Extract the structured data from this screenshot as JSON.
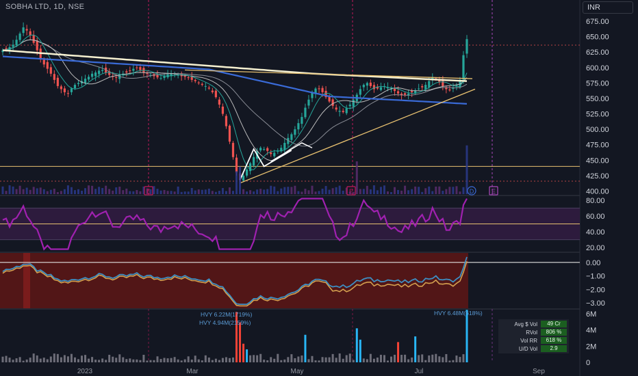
{
  "header": {
    "symbol": "SOBHA LTD",
    "interval": "1D",
    "exchange": "NSE",
    "title": "SOBHA LTD, 1D, NSE"
  },
  "currency_button": "INR",
  "colors": {
    "bg": "#131722",
    "up": "#26a69a",
    "down": "#ef5350",
    "ma200": "#f5f0d0",
    "ma_blue": "#3a6bd8",
    "trend": "#e8c170",
    "rsi": "#a021b0",
    "rsi_band": "#2d1b3d",
    "stoch_bg": "#5a1616",
    "vol_red": "#f44336",
    "vol_blue": "#29b6f6",
    "vol_gray": "#6d6d78"
  },
  "earnings_markers": [
    "E",
    "E",
    "D",
    "E"
  ],
  "chart_data": [
    {
      "type": "candlestick",
      "panel": "price",
      "yaxis_ticks": [
        "675.00",
        "650.00",
        "625.00",
        "600.00",
        "575.00",
        "550.00",
        "525.00",
        "500.00",
        "475.00",
        "450.00",
        "425.00",
        "400.00"
      ],
      "ylim": [
        395,
        685
      ],
      "x_tick_labels": [
        "2023",
        "Mar",
        "May",
        "Jul",
        "Sep"
      ],
      "horizontal_level": 440,
      "closes": [
        628,
        630,
        633,
        637,
        645,
        655,
        665,
        660,
        652,
        640,
        628,
        615,
        605,
        598,
        590,
        580,
        570,
        565,
        560,
        558,
        566,
        572,
        575,
        578,
        582,
        585,
        590,
        592,
        595,
        596,
        592,
        588,
        585,
        584,
        588,
        590,
        592,
        595,
        598,
        600,
        596,
        592,
        590,
        588,
        586,
        584,
        583,
        587,
        589,
        591,
        590,
        588,
        586,
        585,
        583,
        580,
        578,
        575,
        572,
        570,
        566,
        560,
        552,
        540,
        525,
        505,
        480,
        455,
        430,
        418,
        425,
        435,
        445,
        455,
        465,
        470,
        468,
        465,
        460,
        462,
        465,
        470,
        478,
        486,
        492,
        500,
        510,
        520,
        535,
        548,
        560,
        566,
        565,
        560,
        552,
        545,
        538,
        532,
        530,
        528,
        534,
        540,
        548,
        556,
        565,
        572,
        575,
        570,
        565,
        566,
        568,
        570,
        568,
        566,
        562,
        558,
        555,
        556,
        558,
        560,
        563,
        566,
        568,
        572,
        578,
        584,
        582,
        576,
        570,
        565,
        563,
        568,
        572,
        580,
        620,
        646
      ]
    },
    {
      "type": "line",
      "panel": "rsi",
      "yaxis_ticks": [
        "80.00",
        "60.00",
        "40.00",
        "20.00"
      ],
      "ylim": [
        15,
        85
      ],
      "levels": [
        70,
        50,
        30
      ]
    },
    {
      "type": "line",
      "panel": "oscillator",
      "yaxis_ticks": [
        "0.00",
        "−1.00",
        "−2.00",
        "−3.00"
      ],
      "ylim": [
        -3.4,
        0.7
      ]
    },
    {
      "type": "bar",
      "panel": "volume",
      "yaxis_ticks": [
        "6M",
        "4M",
        "2M",
        "0"
      ],
      "ylim": [
        0,
        6.5
      ],
      "annotations": [
        "HVY 6.22M(1719%)",
        "HVY 4.94M(2159%)",
        "HVY 6.48M(618%)"
      ]
    }
  ],
  "stats_table": [
    {
      "label": "Avg $ Vol",
      "value": "49 Cr"
    },
    {
      "label": "RVol",
      "value": "806 %"
    },
    {
      "label": "Vol RR",
      "value": "618 %"
    },
    {
      "label": "U/D Vol",
      "value": "2.9"
    }
  ]
}
